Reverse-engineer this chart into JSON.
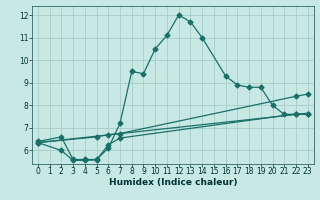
{
  "xlabel": "Humidex (Indice chaleur)",
  "xlim": [
    -0.5,
    23.5
  ],
  "ylim": [
    5.4,
    12.4
  ],
  "xticks": [
    0,
    1,
    2,
    3,
    4,
    5,
    6,
    7,
    8,
    9,
    10,
    11,
    12,
    13,
    14,
    15,
    16,
    17,
    18,
    19,
    20,
    21,
    22,
    23
  ],
  "yticks": [
    6,
    7,
    8,
    9,
    10,
    11,
    12
  ],
  "bg_color": "#c8e8e4",
  "grid_color": "#a8ccc8",
  "line_color": "#1a7068",
  "line1_x": [
    0,
    2,
    3,
    4,
    5,
    6,
    7,
    8,
    9,
    10,
    11,
    12,
    13,
    14,
    16,
    17,
    18,
    19,
    20,
    21,
    22,
    23
  ],
  "line1_y": [
    6.4,
    6.6,
    5.6,
    5.6,
    5.6,
    6.1,
    7.2,
    9.5,
    9.4,
    10.5,
    11.1,
    12.0,
    11.7,
    11.0,
    9.3,
    8.9,
    8.8,
    8.8,
    8.0,
    7.6,
    7.6,
    7.6
  ],
  "line2_x": [
    0,
    2,
    3,
    4,
    5,
    6,
    7,
    22,
    23
  ],
  "line2_y": [
    6.35,
    6.0,
    5.56,
    5.56,
    5.58,
    6.25,
    6.55,
    7.62,
    7.62
  ],
  "line3_x": [
    0,
    5,
    6,
    7,
    22,
    23
  ],
  "line3_y": [
    6.35,
    6.6,
    6.7,
    6.75,
    8.4,
    8.5
  ],
  "line4_x": [
    0,
    23
  ],
  "line4_y": [
    6.35,
    7.65
  ],
  "markersize": 2.5,
  "linewidth": 0.9,
  "tick_fontsize": 5.5,
  "xlabel_fontsize": 6.5
}
